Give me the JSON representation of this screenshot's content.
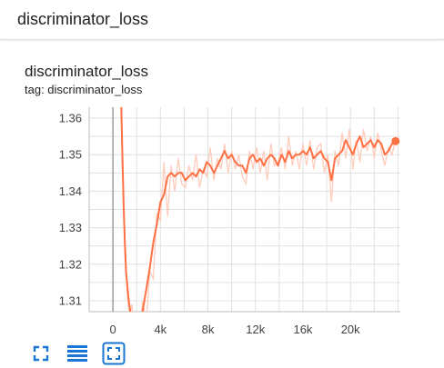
{
  "header": {
    "title": "discriminator_loss"
  },
  "card": {
    "title": "discriminator_loss",
    "tag_text": "tag: discriminator_loss"
  },
  "colors": {
    "accent": "#ff7043",
    "raw_line": "#ffccbc",
    "grid": "#e0e0e0",
    "toolbar_icon": "#1976d2"
  },
  "toolbar": {
    "icons": [
      "fit-domain-icon",
      "toggle-y-log-icon",
      "expand-chart-icon"
    ]
  },
  "chart_data": {
    "type": "line",
    "title": "discriminator_loss",
    "xlabel": "",
    "ylabel": "",
    "xlim": [
      -2000,
      24200
    ],
    "ylim": [
      1.307,
      1.363
    ],
    "x_ticks": [
      0,
      4000,
      8000,
      12000,
      16000,
      20000
    ],
    "x_tick_labels": [
      "0",
      "4k",
      "8k",
      "12k",
      "16k",
      "20k"
    ],
    "y_ticks": [
      1.31,
      1.32,
      1.33,
      1.34,
      1.35,
      1.36
    ],
    "y_tick_labels": [
      "1.31",
      "1.32",
      "1.33",
      "1.34",
      "1.35",
      "1.36"
    ],
    "grid": true,
    "series": [
      {
        "smoothed": true,
        "x": [
          700,
          800,
          900,
          1000,
          1100,
          1300,
          1500,
          1700,
          1900,
          2200,
          2500,
          2800,
          3100,
          3400,
          3700,
          4000,
          4300,
          4600,
          4900,
          5200,
          5500,
          5800,
          6100,
          6400,
          6700,
          7000,
          7300,
          7600,
          7900,
          8200,
          8500,
          8800,
          9100,
          9400,
          9700,
          10000,
          10300,
          10600,
          10900,
          11200,
          11500,
          11800,
          12100,
          12400,
          12700,
          13000,
          13300,
          13600,
          13900,
          14200,
          14500,
          14800,
          15100,
          15400,
          15700,
          16000,
          16300,
          16600,
          16900,
          17200,
          17500,
          17800,
          18100,
          18400,
          18700,
          19000,
          19300,
          19600,
          19900,
          20200,
          20500,
          20800,
          21100,
          21400,
          21700,
          22000,
          22300,
          22600,
          22900,
          23200,
          23500,
          23800
        ],
        "y": [
          1.364,
          1.35,
          1.336,
          1.326,
          1.318,
          1.311,
          1.306,
          1.302,
          1.3,
          1.302,
          1.307,
          1.313,
          1.319,
          1.326,
          1.331,
          1.337,
          1.339,
          1.344,
          1.345,
          1.344,
          1.345,
          1.345,
          1.343,
          1.344,
          1.345,
          1.344,
          1.346,
          1.345,
          1.348,
          1.347,
          1.345,
          1.347,
          1.349,
          1.351,
          1.349,
          1.35,
          1.348,
          1.347,
          1.347,
          1.345,
          1.349,
          1.35,
          1.348,
          1.349,
          1.347,
          1.349,
          1.35,
          1.349,
          1.347,
          1.35,
          1.348,
          1.351,
          1.349,
          1.35,
          1.35,
          1.351,
          1.35,
          1.352,
          1.349,
          1.35,
          1.351,
          1.349,
          1.348,
          1.343,
          1.349,
          1.35,
          1.351,
          1.354,
          1.352,
          1.35,
          1.353,
          1.355,
          1.352,
          1.353,
          1.354,
          1.352,
          1.354,
          1.353,
          1.35,
          1.351,
          1.353,
          1.354
        ]
      },
      {
        "smoothed": false,
        "x": [
          700,
          800,
          1000,
          1200,
          1400,
          1600,
          1800,
          2000,
          2200,
          2500,
          2800,
          3100,
          3400,
          3700,
          4000,
          4300,
          4600,
          4900,
          5200,
          5500,
          5800,
          6100,
          6400,
          6700,
          7000,
          7300,
          7600,
          7900,
          8200,
          8500,
          8800,
          9100,
          9400,
          9700,
          10000,
          10300,
          10600,
          10900,
          11200,
          11500,
          11800,
          12100,
          12400,
          12700,
          13000,
          13300,
          13600,
          13900,
          14200,
          14500,
          14800,
          15100,
          15400,
          15700,
          16000,
          16300,
          16600,
          16900,
          17200,
          17500,
          17800,
          18100,
          18400,
          18700,
          19000,
          19300,
          19600,
          19900,
          20200,
          20500,
          20800,
          21100,
          21400,
          21700,
          22000,
          22300,
          22600,
          22900,
          23200,
          23500,
          23800
        ],
        "y": [
          1.364,
          1.345,
          1.328,
          1.312,
          1.305,
          1.309,
          1.301,
          1.306,
          1.3,
          1.31,
          1.304,
          1.318,
          1.316,
          1.334,
          1.332,
          1.348,
          1.333,
          1.347,
          1.34,
          1.349,
          1.342,
          1.341,
          1.347,
          1.343,
          1.35,
          1.341,
          1.346,
          1.344,
          1.352,
          1.343,
          1.349,
          1.346,
          1.353,
          1.345,
          1.351,
          1.346,
          1.35,
          1.344,
          1.342,
          1.351,
          1.346,
          1.352,
          1.345,
          1.351,
          1.343,
          1.353,
          1.347,
          1.348,
          1.352,
          1.346,
          1.355,
          1.347,
          1.351,
          1.346,
          1.353,
          1.347,
          1.354,
          1.346,
          1.352,
          1.353,
          1.345,
          1.35,
          1.337,
          1.351,
          1.347,
          1.356,
          1.349,
          1.357,
          1.346,
          1.354,
          1.348,
          1.357,
          1.351,
          1.355,
          1.349,
          1.356,
          1.351,
          1.347,
          1.352,
          1.35,
          1.354
        ]
      }
    ],
    "end_marker": {
      "x": 23800,
      "y": 1.3537
    }
  }
}
